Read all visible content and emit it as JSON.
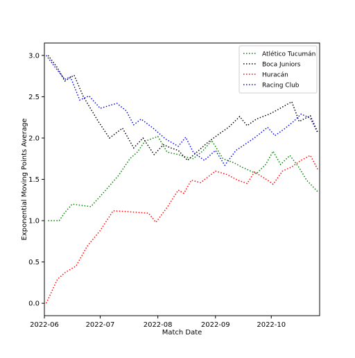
{
  "chart_data": {
    "type": "line",
    "title": "",
    "xlabel": "Match Date",
    "ylabel": "Exponential Moving Points Average",
    "xlim": [
      "2022-06-01",
      "2022-10-27"
    ],
    "ylim": [
      -0.15,
      3.15
    ],
    "x_ticks": [
      {
        "date": "2022-06-01",
        "label": "2022-06"
      },
      {
        "date": "2022-07-01",
        "label": "2022-07"
      },
      {
        "date": "2022-08-01",
        "label": "2022-08"
      },
      {
        "date": "2022-09-01",
        "label": "2022-09"
      },
      {
        "date": "2022-10-01",
        "label": "2022-10"
      }
    ],
    "y_ticks": [
      {
        "value": 0.0,
        "label": "0.0"
      },
      {
        "value": 0.5,
        "label": "0.5"
      },
      {
        "value": 1.0,
        "label": "1.0"
      },
      {
        "value": 1.5,
        "label": "1.5"
      },
      {
        "value": 2.0,
        "label": "2.0"
      },
      {
        "value": 2.5,
        "label": "2.5"
      },
      {
        "value": 3.0,
        "label": "3.0"
      }
    ],
    "grid": false,
    "legend_position": "top-right",
    "line_style": "dotted",
    "series": [
      {
        "name": "Atlético Tucumán",
        "color": "#008000",
        "x": [
          "2022-06-03",
          "2022-06-09",
          "2022-06-12",
          "2022-06-16",
          "2022-06-26",
          "2022-07-04",
          "2022-07-11",
          "2022-07-17",
          "2022-07-21",
          "2022-07-25",
          "2022-08-01",
          "2022-08-06",
          "2022-08-12",
          "2022-08-16",
          "2022-08-20",
          "2022-08-25",
          "2022-08-30",
          "2022-09-05",
          "2022-09-11",
          "2022-09-15",
          "2022-09-23",
          "2022-09-28",
          "2022-10-02",
          "2022-10-06",
          "2022-10-11",
          "2022-10-16",
          "2022-10-20",
          "2022-10-26"
        ],
        "y": [
          1.0,
          1.0,
          1.1,
          1.2,
          1.17,
          1.37,
          1.55,
          1.75,
          1.83,
          1.96,
          2.02,
          1.83,
          1.8,
          1.77,
          1.75,
          1.84,
          1.97,
          1.75,
          1.7,
          1.65,
          1.57,
          1.68,
          1.84,
          1.68,
          1.79,
          1.64,
          1.49,
          1.35
        ]
      },
      {
        "name": "Boca Juniors",
        "color": "#000000",
        "x": [
          "2022-06-03",
          "2022-06-08",
          "2022-06-12",
          "2022-06-17",
          "2022-06-22",
          "2022-06-30",
          "2022-07-06",
          "2022-07-13",
          "2022-07-19",
          "2022-07-24",
          "2022-07-30",
          "2022-08-04",
          "2022-08-08",
          "2022-08-12",
          "2022-08-17",
          "2022-08-23",
          "2022-08-28",
          "2022-09-03",
          "2022-09-08",
          "2022-09-14",
          "2022-09-18",
          "2022-09-23",
          "2022-09-30",
          "2022-10-05",
          "2022-10-12",
          "2022-10-16",
          "2022-10-22",
          "2022-10-26"
        ],
        "y": [
          3.0,
          2.85,
          2.69,
          2.76,
          2.5,
          2.2,
          2.0,
          2.12,
          1.88,
          2.0,
          1.8,
          1.92,
          1.88,
          1.85,
          1.73,
          1.85,
          1.95,
          2.05,
          2.13,
          2.26,
          2.15,
          2.23,
          2.29,
          2.35,
          2.44,
          2.2,
          2.27,
          2.07
        ]
      },
      {
        "name": "Huracán",
        "color": "#ff0000",
        "x": [
          "2022-06-02",
          "2022-06-08",
          "2022-06-12",
          "2022-06-18",
          "2022-06-24",
          "2022-07-01",
          "2022-07-08",
          "2022-07-15",
          "2022-07-21",
          "2022-07-27",
          "2022-07-31",
          "2022-08-06",
          "2022-08-12",
          "2022-08-15",
          "2022-08-19",
          "2022-08-24",
          "2022-09-01",
          "2022-09-07",
          "2022-09-13",
          "2022-09-18",
          "2022-09-22",
          "2022-09-29",
          "2022-10-02",
          "2022-10-07",
          "2022-10-12",
          "2022-10-17",
          "2022-10-22",
          "2022-10-26"
        ],
        "y": [
          0.0,
          0.29,
          0.37,
          0.45,
          0.69,
          0.88,
          1.12,
          1.11,
          1.1,
          1.09,
          0.98,
          1.16,
          1.37,
          1.33,
          1.49,
          1.46,
          1.6,
          1.56,
          1.49,
          1.45,
          1.59,
          1.49,
          1.44,
          1.6,
          1.65,
          1.73,
          1.79,
          1.62
        ]
      },
      {
        "name": "Racing Club",
        "color": "#0000ff",
        "x": [
          "2022-06-02",
          "2022-06-07",
          "2022-06-12",
          "2022-06-15",
          "2022-06-20",
          "2022-06-25",
          "2022-07-01",
          "2022-07-10",
          "2022-07-15",
          "2022-07-19",
          "2022-07-23",
          "2022-07-30",
          "2022-08-05",
          "2022-08-12",
          "2022-08-16",
          "2022-08-20",
          "2022-08-26",
          "2022-09-01",
          "2022-09-06",
          "2022-09-12",
          "2022-09-18",
          "2022-09-23",
          "2022-09-29",
          "2022-10-03",
          "2022-10-08",
          "2022-10-13",
          "2022-10-17",
          "2022-10-22",
          "2022-10-26"
        ],
        "y": [
          3.0,
          2.85,
          2.71,
          2.74,
          2.46,
          2.51,
          2.36,
          2.42,
          2.33,
          2.16,
          2.23,
          2.11,
          1.99,
          1.9,
          2.01,
          1.83,
          1.73,
          1.85,
          1.67,
          1.85,
          1.94,
          2.02,
          2.13,
          2.03,
          2.11,
          2.2,
          2.29,
          2.24,
          2.06
        ]
      }
    ]
  }
}
